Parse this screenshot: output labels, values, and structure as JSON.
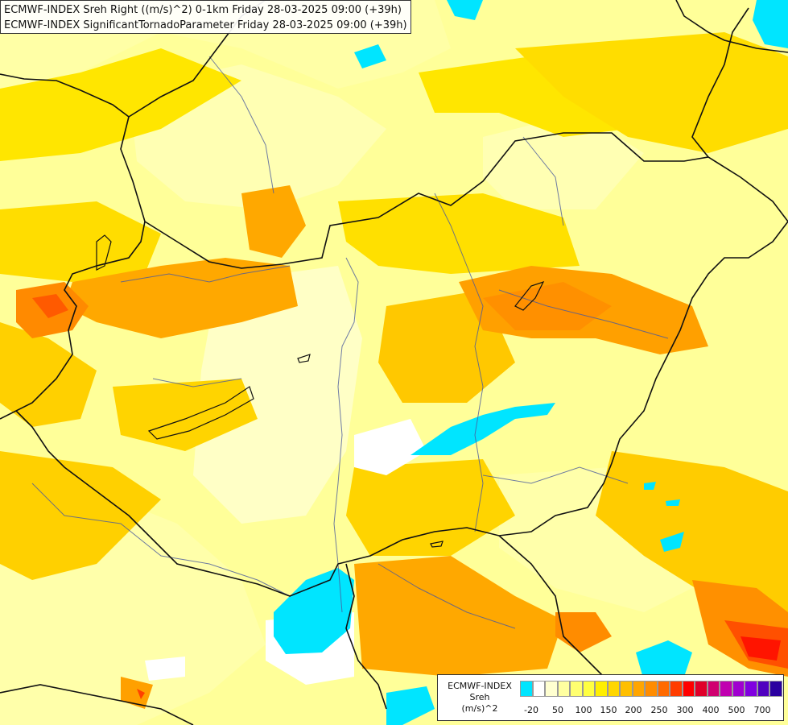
{
  "header": {
    "line1": "ECMWF-INDEX Sreh Right ((m/s)^2) 0-1km Friday 28-03-2025 09:00 (+39h)",
    "line2": "ECMWF-INDEX SignificantTornadoParameter Friday 28-03-2025 09:00 (+39h)"
  },
  "legend": {
    "title1": "ECMWF-INDEX",
    "title2": "Sreh",
    "unit": "(m/s)^2",
    "colors": [
      "#00e5ff",
      "#ffffff",
      "#ffffd0",
      "#ffffa0",
      "#ffff70",
      "#ffff40",
      "#ffef00",
      "#ffd700",
      "#ffbf00",
      "#ffa500",
      "#ff8c00",
      "#ff6a00",
      "#ff3c00",
      "#ff0000",
      "#e0002a",
      "#d00070",
      "#c000b0",
      "#a000d0",
      "#8000e0",
      "#5000c0",
      "#2a00a0"
    ],
    "labels": [
      "-20",
      "50",
      "100",
      "150",
      "200",
      "250",
      "300",
      "400",
      "500",
      "700"
    ]
  }
}
